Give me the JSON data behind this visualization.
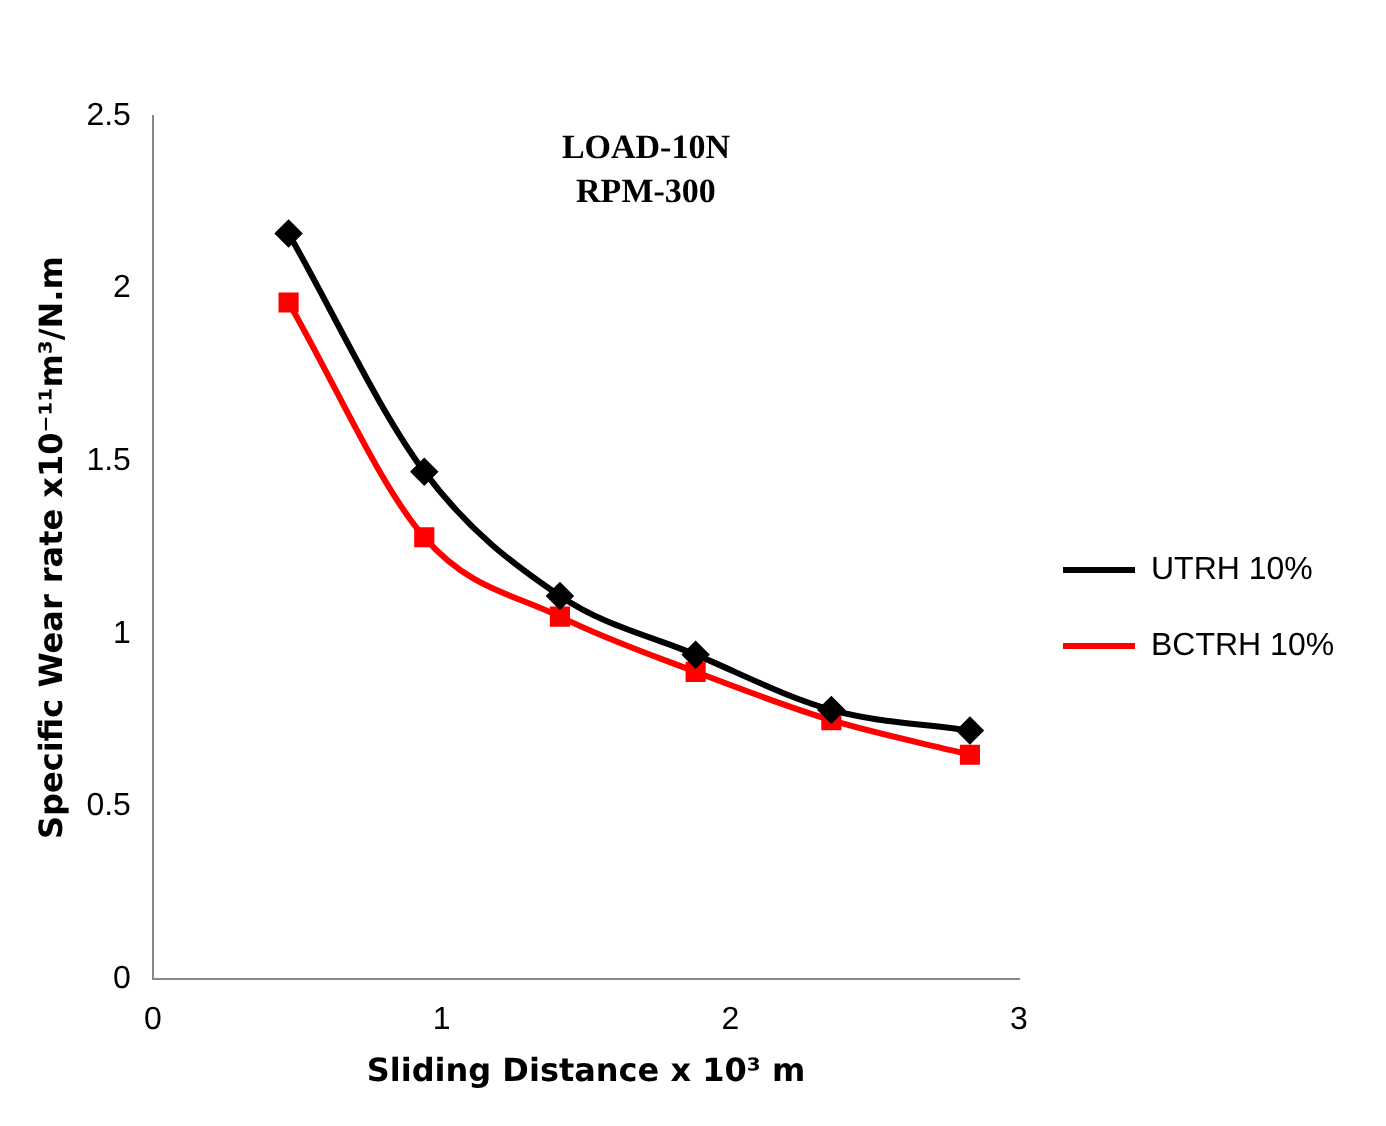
{
  "chart_data": {
    "type": "line",
    "title": "LOAD-10N",
    "subtitle": "RPM-300",
    "xlabel": "Sliding Distance x 10³ m",
    "ylabel": "Specific Wear rate x10⁻¹¹m³/N.m",
    "xlim": [
      0,
      3
    ],
    "xticks": [
      0,
      1,
      2,
      3
    ],
    "ylim": [
      0,
      2.5
    ],
    "yticks": [
      0,
      0.5,
      1,
      1.5,
      2,
      2.5
    ],
    "grid": false,
    "legend": "right",
    "series": [
      {
        "name": "UTRH 10%",
        "color": "#000000",
        "marker": "diamond",
        "x": [
          0.47,
          0.94,
          1.41,
          1.88,
          2.35,
          2.83
        ],
        "values": [
          2.16,
          1.47,
          1.11,
          0.94,
          0.78,
          0.72
        ]
      },
      {
        "name": "BCTRH 10%",
        "color": "#ff0000",
        "marker": "square",
        "x": [
          0.47,
          0.94,
          1.41,
          1.88,
          2.35,
          2.83
        ],
        "values": [
          1.96,
          1.28,
          1.05,
          0.89,
          0.75,
          0.65
        ]
      }
    ]
  }
}
